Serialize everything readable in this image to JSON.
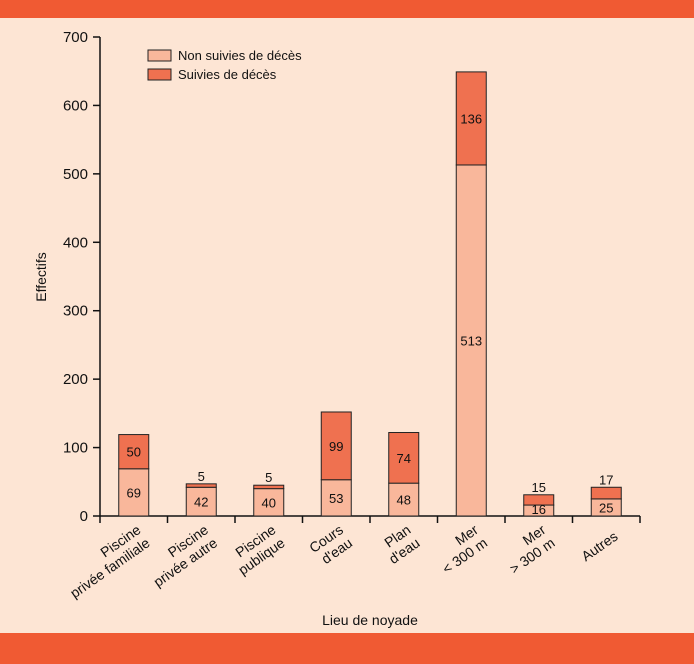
{
  "colors": {
    "background": "#fde5d4",
    "band": "#f05a33",
    "non_fatal": "#f9b79b",
    "fatal": "#ef7150",
    "stroke": "#222222"
  },
  "chart_data": {
    "type": "bar",
    "stacked": true,
    "categories": [
      [
        "Piscine",
        "privée familiale"
      ],
      [
        "Piscine",
        "privée autre"
      ],
      [
        "Piscine",
        "publique"
      ],
      [
        "Cours",
        "d'eau"
      ],
      [
        "Plan",
        "d'eau"
      ],
      [
        "Mer",
        "< 300 m"
      ],
      [
        "Mer",
        "> 300 m"
      ],
      [
        "Autres"
      ]
    ],
    "series": [
      {
        "name": "Non suivies de décès",
        "values": [
          69,
          42,
          40,
          53,
          48,
          513,
          16,
          25
        ]
      },
      {
        "name": "Suivies de décès",
        "values": [
          50,
          5,
          5,
          99,
          74,
          136,
          15,
          17
        ]
      }
    ],
    "xlabel": "Lieu de noyade",
    "ylabel": "Effectifs",
    "ylim": [
      0,
      700
    ],
    "yticks": [
      0,
      100,
      200,
      300,
      400,
      500,
      600,
      700
    ],
    "grid": false,
    "legend": "top-left"
  }
}
